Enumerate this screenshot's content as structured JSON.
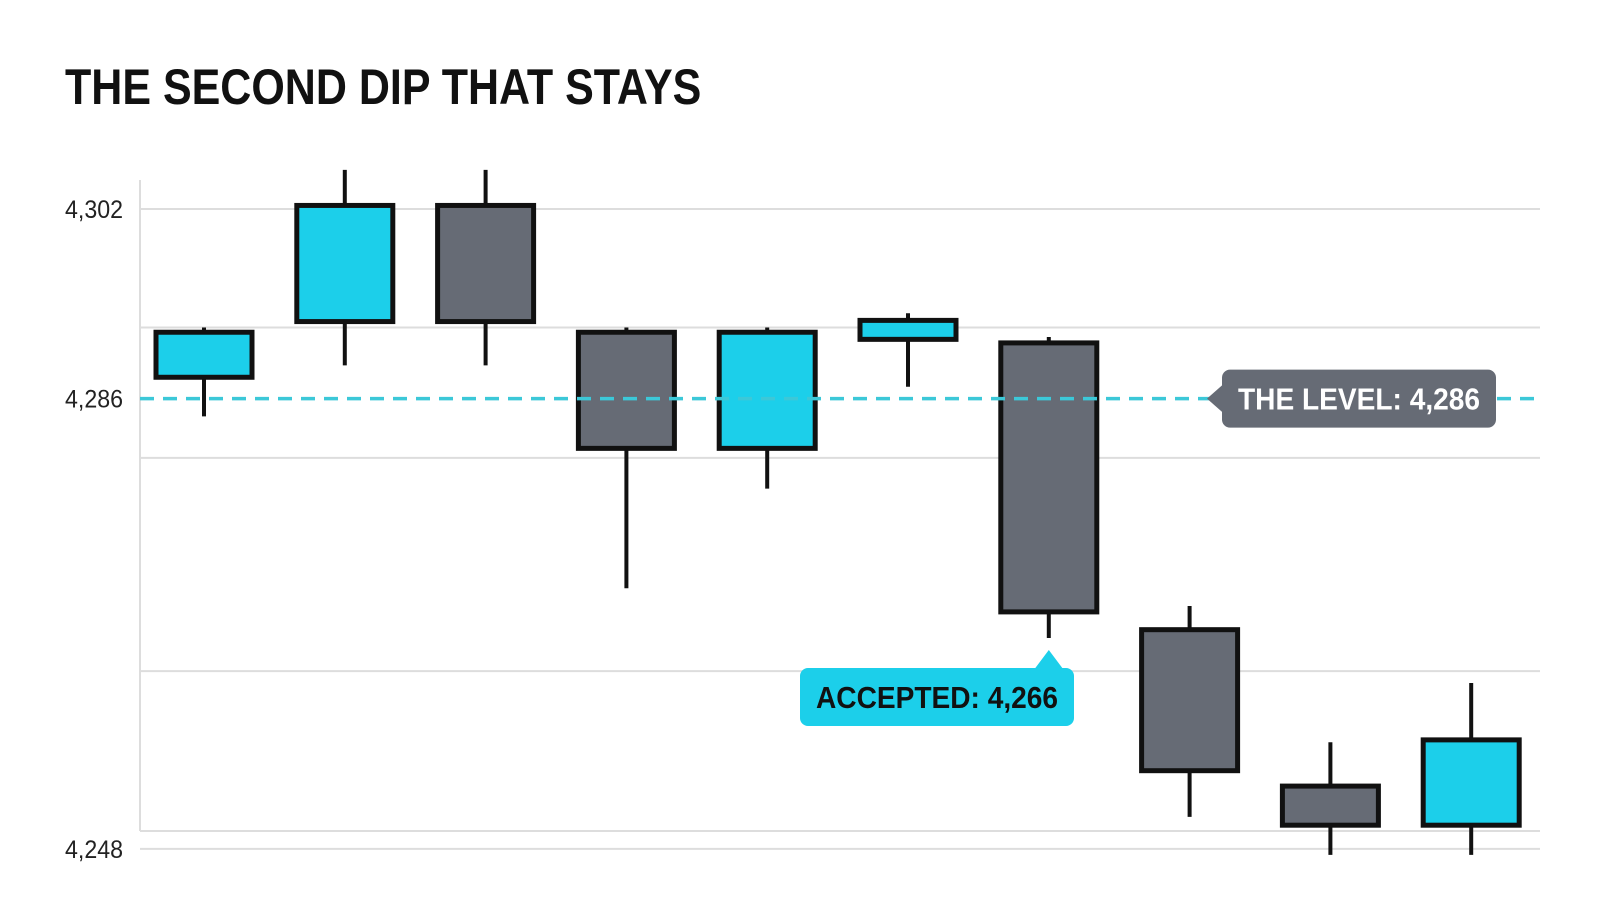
{
  "title": "THE SECOND DIP THAT STAYS",
  "colors": {
    "bullish": "#1ccfea",
    "bearish": "#666b75",
    "outline": "#111111",
    "level_line": "#3cc8d8",
    "grid": "#dddddd",
    "level_label_bg": "#666b75",
    "level_label_text": "#ffffff",
    "accepted_label_bg": "#1ccfea",
    "accepted_label_text": "#111111"
  },
  "chart_data": {
    "type": "candlestick",
    "title": "THE SECOND DIP THAT STAYS",
    "xlabel": "",
    "ylabel": "",
    "ylim": [
      4247,
      4303
    ],
    "y_ticks": [
      {
        "value": 4302,
        "label": "4,302"
      },
      {
        "value": 4286,
        "label": "4,286"
      },
      {
        "value": 4248,
        "label": "4,248"
      }
    ],
    "gridlines": [
      4302,
      4292,
      4281,
      4263,
      4248
    ],
    "grid": true,
    "candles": [
      {
        "open": 4287.8,
        "high": 4292.0,
        "low": 4284.5,
        "close": 4291.6
      },
      {
        "open": 4292.5,
        "high": 4305.3,
        "low": 4288.8,
        "close": 4302.3
      },
      {
        "open": 4302.3,
        "high": 4305.3,
        "low": 4288.8,
        "close": 4292.5
      },
      {
        "open": 4291.6,
        "high": 4292.0,
        "low": 4270.0,
        "close": 4281.8
      },
      {
        "open": 4281.8,
        "high": 4292.0,
        "low": 4278.4,
        "close": 4291.6
      },
      {
        "open": 4291.0,
        "high": 4293.2,
        "low": 4287.0,
        "close": 4292.6
      },
      {
        "open": 4290.7,
        "high": 4291.2,
        "low": 4265.8,
        "close": 4268.0
      },
      {
        "open": 4266.5,
        "high": 4268.5,
        "low": 4250.7,
        "close": 4254.6
      },
      {
        "open": 4253.3,
        "high": 4257.0,
        "low": 4247.5,
        "close": 4250.0
      },
      {
        "open": 4250.0,
        "high": 4262.0,
        "low": 4247.5,
        "close": 4257.2
      }
    ],
    "reference_line": {
      "value": 4286,
      "style": "dashed"
    },
    "annotations": [
      {
        "id": "level",
        "text": "THE LEVEL: 4,286",
        "y": 4286,
        "pointer": "left"
      },
      {
        "id": "accepted",
        "text": "ACCEPTED: 4,266",
        "y": 4266,
        "candle": 6,
        "pointer": "up"
      }
    ]
  }
}
